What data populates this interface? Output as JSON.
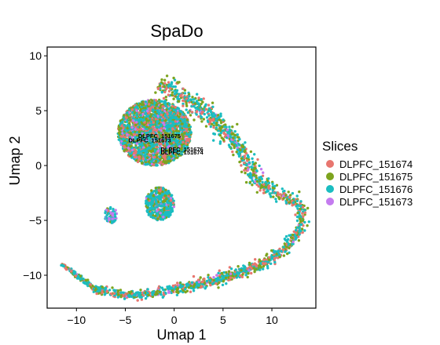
{
  "chart_data": {
    "type": "scatter",
    "title": "SpaDo",
    "xlabel": "Umap 1",
    "ylabel": "Umap 2",
    "xlim": [
      -13,
      14.5
    ],
    "ylim": [
      -13,
      10.8
    ],
    "xticks": [
      -10,
      -5,
      0,
      5,
      10
    ],
    "yticks": [
      10,
      5,
      0,
      -5,
      -10
    ],
    "xtick_labels": [
      "−10",
      "−5",
      "0",
      "5",
      "10"
    ],
    "ytick_labels": [
      "10",
      "5",
      "0",
      "−5",
      "−10"
    ],
    "legend_title": "Slices",
    "legend_position": "right",
    "grid": false,
    "series": [
      {
        "name": "DLPFC_151674",
        "color": "#E8766F"
      },
      {
        "name": "DLPFC_151675",
        "color": "#7DA41E"
      },
      {
        "name": "DLPFC_151676",
        "color": "#1BBDC1"
      },
      {
        "name": "DLPFC_151673",
        "color": "#C47BEF"
      }
    ],
    "cluster_labels": [
      {
        "text": "DLPFC_151675",
        "x": -1.5,
        "y": 2.5
      },
      {
        "text": "DLPFC_151673",
        "x": -2.5,
        "y": 2.1
      },
      {
        "text": "DLPFC_151676",
        "x": 0.8,
        "y": 1.3
      },
      {
        "text": "DLPFC_151674",
        "x": 0.8,
        "y": 1.0
      }
    ],
    "structure": [
      {
        "shape": "blob",
        "cx": -2.0,
        "cy": 3.0,
        "rx": 7.5,
        "ry": 6.0,
        "n": 2600,
        "mix": [
          0.2,
          0.28,
          0.44,
          0.08
        ]
      },
      {
        "shape": "blob",
        "cx": -1.5,
        "cy": -3.5,
        "rx": 3.0,
        "ry": 3.0,
        "n": 500,
        "mix": [
          0.12,
          0.18,
          0.66,
          0.04
        ]
      },
      {
        "shape": "blob",
        "cx": -6.5,
        "cy": -4.5,
        "rx": 1.3,
        "ry": 1.5,
        "n": 70,
        "mix": [
          0.05,
          0.1,
          0.55,
          0.3
        ]
      },
      {
        "shape": "path",
        "points": [
          [
            -1.5,
            7.5
          ],
          [
            3.0,
            5.0
          ],
          [
            6.5,
            2.0
          ],
          [
            8.5,
            -1.5
          ],
          [
            10.5,
            -2.5
          ],
          [
            13.0,
            -3.5
          ],
          [
            13.0,
            -5.5
          ],
          [
            11.5,
            -7.5
          ],
          [
            9.0,
            -9.0
          ],
          [
            5.0,
            -10.3
          ],
          [
            0.0,
            -11.3
          ],
          [
            -4.0,
            -11.9
          ],
          [
            -8.0,
            -11.3
          ],
          [
            -11.5,
            -9.0
          ]
        ],
        "widths": [
          0.9,
          0.9,
          0.8,
          0.8,
          0.6,
          0.55,
          0.55,
          0.5,
          0.5,
          0.5,
          0.45,
          0.4,
          0.3,
          0.1
        ],
        "n": 1700,
        "mix": [
          0.22,
          0.3,
          0.44,
          0.04
        ]
      }
    ]
  }
}
